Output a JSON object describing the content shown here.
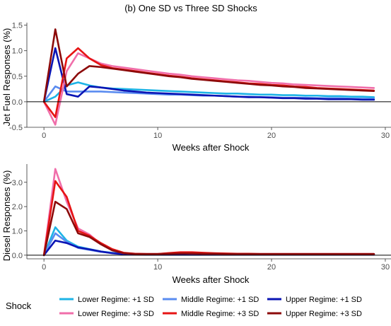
{
  "title": "(b) One SD vs Three SD Shocks",
  "legend": {
    "title": "Shock",
    "items": [
      {
        "label": "Lower Regime: +1 SD",
        "color": "#1EB4E6"
      },
      {
        "label": "Middle Regime: +1 SD",
        "color": "#5A8CF0"
      },
      {
        "label": "Upper Regime: +1 SD",
        "color": "#0A14B4"
      },
      {
        "label": "Lower Regime: +3 SD",
        "color": "#F06EAA"
      },
      {
        "label": "Middle Regime: +3 SD",
        "color": "#E61414"
      },
      {
        "label": "Upper Regime: +3 SD",
        "color": "#8C0A0A"
      }
    ]
  },
  "chart_data": [
    {
      "type": "line",
      "xlabel": "Weeks after Shock",
      "ylabel": "Jet Fuel Responses (%)",
      "xlim": [
        -1.5,
        30.5
      ],
      "ylim": [
        -0.5,
        1.55
      ],
      "xticks": [
        0,
        10,
        20,
        30
      ],
      "yticks": [
        -0.5,
        0.0,
        0.5,
        1.0,
        1.5
      ],
      "ytick_labels": [
        "-0.5",
        "0.0",
        "0.5",
        "1.0",
        "1.5"
      ],
      "hline": 0,
      "grid": false,
      "x": [
        0,
        1,
        2,
        3,
        4,
        5,
        6,
        7,
        8,
        9,
        10,
        11,
        12,
        13,
        14,
        15,
        16,
        17,
        18,
        19,
        20,
        21,
        22,
        23,
        24,
        25,
        26,
        27,
        28,
        29
      ],
      "series": [
        {
          "name": "Lower Regime: +1 SD",
          "values": [
            0,
            0.1,
            0.32,
            0.38,
            0.32,
            0.28,
            0.26,
            0.25,
            0.24,
            0.23,
            0.22,
            0.21,
            0.2,
            0.19,
            0.18,
            0.17,
            0.16,
            0.16,
            0.15,
            0.14,
            0.14,
            0.13,
            0.13,
            0.12,
            0.12,
            0.11,
            0.11,
            0.1,
            0.1,
            0.09
          ]
        },
        {
          "name": "Middle Regime: +1 SD",
          "values": [
            0,
            0.3,
            0.2,
            0.2,
            0.2,
            0.2,
            0.19,
            0.18,
            0.17,
            0.16,
            0.15,
            0.14,
            0.14,
            0.13,
            0.12,
            0.12,
            0.11,
            0.1,
            0.1,
            0.09,
            0.09,
            0.08,
            0.08,
            0.08,
            0.07,
            0.07,
            0.07,
            0.06,
            0.06,
            0.06
          ]
        },
        {
          "name": "Upper Regime: +1 SD",
          "values": [
            0,
            1.05,
            0.15,
            0.1,
            0.3,
            0.28,
            0.25,
            0.22,
            0.2,
            0.18,
            0.17,
            0.16,
            0.15,
            0.14,
            0.13,
            0.12,
            0.11,
            0.1,
            0.09,
            0.09,
            0.08,
            0.07,
            0.07,
            0.06,
            0.06,
            0.05,
            0.05,
            0.05,
            0.04,
            0.04
          ]
        },
        {
          "name": "Lower Regime: +3 SD",
          "values": [
            0,
            -0.45,
            0.6,
            0.95,
            0.85,
            0.75,
            0.7,
            0.67,
            0.64,
            0.61,
            0.58,
            0.55,
            0.53,
            0.5,
            0.48,
            0.46,
            0.44,
            0.42,
            0.41,
            0.39,
            0.37,
            0.36,
            0.34,
            0.33,
            0.32,
            0.31,
            0.3,
            0.29,
            0.28,
            0.27
          ]
        },
        {
          "name": "Middle Regime: +3 SD",
          "values": [
            0,
            -0.3,
            0.85,
            1.05,
            0.85,
            0.72,
            0.66,
            0.63,
            0.6,
            0.57,
            0.54,
            0.51,
            0.49,
            0.46,
            0.44,
            0.42,
            0.4,
            0.38,
            0.36,
            0.35,
            0.33,
            0.32,
            0.3,
            0.29,
            0.27,
            0.26,
            0.25,
            0.24,
            0.23,
            0.22
          ]
        },
        {
          "name": "Upper Regime: +3 SD",
          "values": [
            0,
            1.42,
            0.3,
            0.55,
            0.7,
            0.68,
            0.65,
            0.62,
            0.59,
            0.56,
            0.53,
            0.5,
            0.48,
            0.45,
            0.43,
            0.41,
            0.39,
            0.37,
            0.35,
            0.33,
            0.32,
            0.3,
            0.29,
            0.27,
            0.26,
            0.25,
            0.24,
            0.23,
            0.22,
            0.21
          ]
        }
      ]
    },
    {
      "type": "line",
      "xlabel": "Weeks after Shock",
      "ylabel": "Diesel Responses (%)",
      "xlim": [
        -1.5,
        30.5
      ],
      "ylim": [
        -0.15,
        3.75
      ],
      "xticks": [
        0,
        10,
        20,
        30
      ],
      "yticks": [
        0.0,
        1.0,
        2.0,
        3.0
      ],
      "ytick_labels": [
        "0.0",
        "1.0",
        "2.0",
        "3.0"
      ],
      "hline": 0,
      "grid": false,
      "x": [
        0,
        1,
        2,
        3,
        4,
        5,
        6,
        7,
        8,
        9,
        10,
        11,
        12,
        13,
        14,
        15,
        16,
        17,
        18,
        19,
        20,
        21,
        22,
        23,
        24,
        25,
        26,
        27,
        28,
        29
      ],
      "series": [
        {
          "name": "Lower Regime: +1 SD",
          "values": [
            0,
            1.15,
            0.6,
            0.35,
            0.25,
            0.15,
            0.1,
            0.06,
            0.04,
            0.03,
            0.03,
            0.03,
            0.03,
            0.03,
            0.03,
            0.03,
            0.03,
            0.03,
            0.03,
            0.03,
            0.03,
            0.03,
            0.03,
            0.03,
            0.03,
            0.03,
            0.03,
            0.03,
            0.03,
            0.03
          ]
        },
        {
          "name": "Middle Regime: +1 SD",
          "values": [
            0,
            0.9,
            0.55,
            0.3,
            0.22,
            0.14,
            0.09,
            0.05,
            0.04,
            0.03,
            0.03,
            0.03,
            0.03,
            0.03,
            0.03,
            0.03,
            0.03,
            0.03,
            0.03,
            0.03,
            0.03,
            0.03,
            0.03,
            0.03,
            0.03,
            0.03,
            0.03,
            0.03,
            0.03,
            0.03
          ]
        },
        {
          "name": "Upper Regime: +1 SD",
          "values": [
            0,
            0.6,
            0.5,
            0.32,
            0.24,
            0.15,
            0.08,
            0.04,
            0.03,
            0.02,
            0.02,
            0.02,
            0.02,
            0.02,
            0.02,
            0.02,
            0.02,
            0.02,
            0.02,
            0.02,
            0.02,
            0.02,
            0.02,
            0.02,
            0.02,
            0.02,
            0.02,
            0.02,
            0.02,
            0.02
          ]
        },
        {
          "name": "Lower Regime: +3 SD",
          "values": [
            0,
            3.55,
            2.2,
            1.1,
            0.85,
            0.45,
            0.2,
            0.08,
            0.06,
            0.05,
            0.05,
            0.08,
            0.08,
            0.07,
            0.06,
            0.06,
            0.05,
            0.05,
            0.05,
            0.05,
            0.05,
            0.05,
            0.05,
            0.05,
            0.05,
            0.05,
            0.05,
            0.05,
            0.05,
            0.05
          ]
        },
        {
          "name": "Middle Regime: +3 SD",
          "values": [
            0,
            3.05,
            2.4,
            1.0,
            0.8,
            0.5,
            0.25,
            0.1,
            0.06,
            0.05,
            0.05,
            0.09,
            0.12,
            0.12,
            0.1,
            0.08,
            0.07,
            0.06,
            0.06,
            0.05,
            0.05,
            0.05,
            0.05,
            0.05,
            0.05,
            0.05,
            0.05,
            0.05,
            0.05,
            0.05
          ]
        },
        {
          "name": "Upper Regime: +3 SD",
          "values": [
            0,
            2.2,
            1.9,
            0.9,
            0.75,
            0.45,
            0.2,
            0.08,
            0.05,
            0.05,
            0.05,
            0.06,
            0.07,
            0.07,
            0.06,
            0.06,
            0.05,
            0.05,
            0.05,
            0.05,
            0.05,
            0.05,
            0.05,
            0.05,
            0.05,
            0.05,
            0.05,
            0.05,
            0.05,
            0.05
          ]
        }
      ]
    }
  ]
}
